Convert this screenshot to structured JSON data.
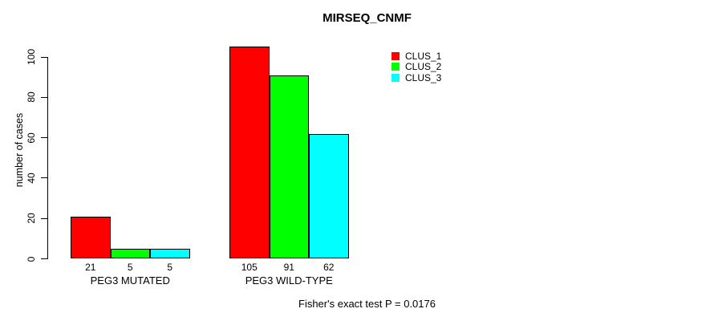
{
  "chart_data": {
    "type": "bar",
    "title": "MIRSEQ_CNMF",
    "ylabel": "number of cases",
    "xlabel": "",
    "categories": [
      "PEG3 MUTATED",
      "PEG3 WILD-TYPE"
    ],
    "series": [
      {
        "name": "CLUS_1",
        "color": "#ff0000",
        "values": [
          21,
          105
        ]
      },
      {
        "name": "CLUS_2",
        "color": "#00ff00",
        "values": [
          5,
          91
        ]
      },
      {
        "name": "CLUS_3",
        "color": "#00ffff",
        "values": [
          5,
          62
        ]
      }
    ],
    "bar_value_labels": [
      [
        21,
        5,
        5
      ],
      [
        105,
        91,
        62
      ]
    ],
    "yticks": [
      0,
      20,
      40,
      60,
      80,
      100
    ],
    "ylim": [
      0,
      109
    ],
    "grid": false,
    "bar_border_color": "#000000",
    "legend_position": "top-right-inside",
    "legend_items": [
      "CLUS_1",
      "CLUS_2",
      "CLUS_3"
    ],
    "annotation": "Fisher's exact test P = 0.0176"
  }
}
